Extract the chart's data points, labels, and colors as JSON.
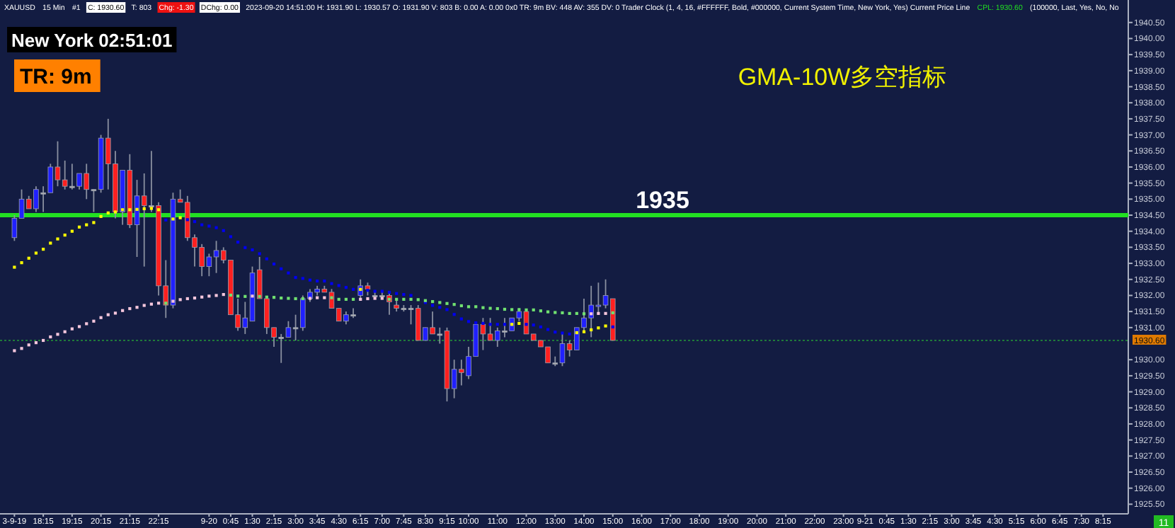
{
  "chart_data": {
    "type": "candlestick",
    "title": "GMA-10W多空指标",
    "categories": [
      "3-9-19",
      null,
      null,
      null,
      "18:15",
      null,
      null,
      null,
      "19:15",
      null,
      null,
      null,
      "20:15",
      null,
      null,
      null,
      "21:15",
      null,
      null,
      null,
      "22:15",
      null,
      null,
      null,
      null,
      null,
      null,
      "9-20",
      null,
      null,
      "0:45",
      null,
      null,
      "1:30",
      null,
      null,
      "2:15",
      null,
      null,
      "3:00",
      null,
      null,
      "3:45",
      null,
      null,
      "4:30",
      null,
      null,
      "6:15",
      null,
      null,
      "7:00",
      null,
      null,
      "7:45",
      null,
      null,
      "8:30",
      null,
      null,
      "9:15",
      null,
      null,
      "10:00",
      null,
      null,
      null,
      "11:00",
      null,
      null,
      null,
      "12:00",
      null,
      null,
      null,
      "13:00",
      null,
      null,
      null,
      "14:00",
      null,
      null,
      null,
      "15:00",
      null,
      null,
      null,
      "16:00",
      null,
      null,
      null,
      "17:00",
      null,
      null,
      null,
      "18:00",
      null,
      null,
      null,
      "19:00",
      null,
      null,
      null,
      "20:00",
      null,
      null,
      null,
      "21:00",
      null,
      null,
      null,
      "22:00",
      null,
      null,
      null,
      "23:00",
      null,
      null,
      "9-21",
      null,
      null,
      "0:45",
      null,
      null,
      "1:30",
      null,
      null,
      "2:15",
      null,
      null,
      "3:00",
      null,
      null,
      "3:45",
      null,
      null,
      "4:30",
      null,
      null,
      "5:15",
      null,
      null,
      "6:00",
      null,
      null,
      "6:45",
      null,
      null,
      "7:30",
      null,
      null,
      "8:15",
      null,
      null,
      null
    ],
    "ohlc": [
      [
        1933.8,
        1934.5,
        1933.7,
        1934.4
      ],
      [
        1934.4,
        1935.3,
        1934.4,
        1935.0
      ],
      [
        1935.0,
        1935.1,
        1934.7,
        1934.7
      ],
      [
        1934.7,
        1935.4,
        1934.6,
        1935.3
      ],
      [
        1935.2,
        1935.4,
        1934.6,
        1935.2
      ],
      [
        1935.2,
        1936.1,
        1935.2,
        1936.0
      ],
      [
        1936.0,
        1936.8,
        1935.4,
        1935.6
      ],
      [
        1935.6,
        1936.2,
        1935.3,
        1935.4
      ],
      [
        1935.4,
        1936.1,
        1935.3,
        1935.4
      ],
      [
        1935.4,
        1935.8,
        1935.3,
        1935.8
      ],
      [
        1935.8,
        1936.1,
        1935.0,
        1935.3
      ],
      [
        1935.3,
        1935.3,
        1934.6,
        1935.3
      ],
      [
        1935.3,
        1937.0,
        1935.2,
        1936.9
      ],
      [
        1936.9,
        1937.5,
        1935.3,
        1936.1
      ],
      [
        1936.1,
        1936.5,
        1934.4,
        1934.6
      ],
      [
        1934.6,
        1935.9,
        1934.2,
        1935.9
      ],
      [
        1935.9,
        1936.4,
        1934.1,
        1934.2
      ],
      [
        1934.2,
        1935.6,
        1933.2,
        1935.1
      ],
      [
        1935.1,
        1935.8,
        1932.9,
        1934.8
      ],
      [
        1934.8,
        1936.5,
        1934.6,
        1934.8
      ],
      [
        1934.8,
        1934.9,
        1932.0,
        1932.3
      ],
      [
        1932.3,
        1933.1,
        1931.3,
        1931.7
      ],
      [
        1931.7,
        1935.2,
        1931.6,
        1935.0
      ],
      [
        1935.0,
        1935.3,
        1934.9,
        1934.9
      ],
      [
        1934.9,
        1935.1,
        1933.7,
        1933.8
      ],
      [
        1933.8,
        1933.9,
        1932.9,
        1933.5
      ],
      [
        1933.5,
        1933.6,
        1932.6,
        1932.9
      ],
      [
        1932.9,
        1933.3,
        1932.6,
        1933.2
      ],
      [
        1933.2,
        1933.7,
        1932.7,
        1933.4
      ],
      [
        1933.4,
        1933.5,
        1933.0,
        1933.1
      ],
      [
        1933.1,
        1933.1,
        1931.4,
        1931.4
      ],
      [
        1931.4,
        1931.9,
        1930.9,
        1931.0
      ],
      [
        1931.0,
        1931.8,
        1930.8,
        1931.3
      ],
      [
        1931.2,
        1932.9,
        1931.2,
        1932.7
      ],
      [
        1932.8,
        1933.2,
        1931.9,
        1931.9
      ],
      [
        1931.9,
        1931.9,
        1930.8,
        1931.0
      ],
      [
        1931.0,
        1931.0,
        1930.4,
        1930.7
      ],
      [
        1930.7,
        1930.8,
        1929.9,
        1930.7
      ],
      [
        1930.7,
        1931.2,
        1930.7,
        1931.0
      ],
      [
        1931.0,
        1931.4,
        1930.6,
        1931.0
      ],
      [
        1931.0,
        1932.0,
        1930.9,
        1931.9
      ],
      [
        1931.9,
        1932.2,
        1931.8,
        1932.1
      ],
      [
        1932.1,
        1932.3,
        1932.0,
        1932.2
      ],
      [
        1932.2,
        1932.3,
        1932.1,
        1932.1
      ],
      [
        1932.1,
        1932.2,
        1931.6,
        1931.6
      ],
      [
        1931.6,
        1931.6,
        1931.2,
        1931.2
      ],
      [
        1931.2,
        1931.5,
        1931.1,
        1931.4
      ],
      [
        1931.4,
        1931.6,
        1931.3,
        1931.4
      ],
      [
        1932.0,
        1932.5,
        1931.9,
        1932.3
      ],
      [
        1932.3,
        1932.4,
        1932.0,
        1932.2
      ],
      [
        1932.0,
        1932.1,
        1931.9,
        1932.0
      ],
      [
        1932.0,
        1932.1,
        1931.9,
        1932.0
      ],
      [
        1932.0,
        1932.1,
        1931.4,
        1931.8
      ],
      [
        1931.7,
        1931.9,
        1931.5,
        1931.6
      ],
      [
        1931.6,
        1931.7,
        1931.5,
        1931.6
      ],
      [
        1931.6,
        1931.7,
        1931.1,
        1931.6
      ],
      [
        1931.6,
        1931.7,
        1930.6,
        1930.6
      ],
      [
        1930.6,
        1931.0,
        1930.6,
        1931.0
      ],
      [
        1931.0,
        1931.5,
        1930.8,
        1930.8
      ],
      [
        1930.8,
        1931.0,
        1930.5,
        1930.8
      ],
      [
        1930.9,
        1931.0,
        1928.7,
        1929.1
      ],
      [
        1929.1,
        1930.0,
        1928.8,
        1929.7
      ],
      [
        1929.7,
        1930.0,
        1929.2,
        1929.6
      ],
      [
        1929.5,
        1930.4,
        1929.4,
        1930.1
      ],
      [
        1930.1,
        1931.1,
        1930.1,
        1931.1
      ],
      [
        1931.1,
        1931.3,
        1930.3,
        1930.8
      ],
      [
        1930.8,
        1931.3,
        1930.6,
        1930.6
      ],
      [
        1930.6,
        1931.0,
        1930.4,
        1930.9
      ],
      [
        1930.9,
        1931.3,
        1930.7,
        1930.9
      ],
      [
        1930.9,
        1931.3,
        1930.9,
        1931.3
      ],
      [
        1931.3,
        1931.6,
        1931.2,
        1931.5
      ],
      [
        1931.5,
        1931.5,
        1930.8,
        1930.8
      ],
      [
        1930.8,
        1930.8,
        1930.6,
        1930.6
      ],
      [
        1930.6,
        1930.6,
        1930.4,
        1930.4
      ],
      [
        1930.4,
        1930.4,
        1929.9,
        1929.9
      ],
      [
        1929.9,
        1930.1,
        1929.8,
        1929.9
      ],
      [
        1929.9,
        1930.8,
        1929.8,
        1930.5
      ],
      [
        1930.5,
        1930.6,
        1930.1,
        1930.3
      ],
      [
        1930.3,
        1931.0,
        1930.3,
        1931.0
      ],
      [
        1931.0,
        1931.9,
        1930.9,
        1931.3
      ],
      [
        1931.3,
        1932.3,
        1930.7,
        1931.7
      ],
      [
        1931.7,
        1932.4,
        1931.4,
        1931.7
      ],
      [
        1931.7,
        1932.5,
        1931.6,
        1932.0
      ],
      [
        1931.9,
        1931.9,
        1930.6,
        1930.6
      ],
      null,
      null,
      null,
      null,
      null,
      null,
      null,
      null,
      null,
      null,
      null,
      null,
      null,
      null,
      null,
      null,
      null,
      null,
      null,
      null,
      null,
      null,
      null,
      null,
      null,
      null,
      null,
      null,
      null,
      null,
      null,
      null,
      null,
      null,
      null,
      null,
      null,
      null,
      null,
      null,
      null,
      null,
      null,
      null,
      null,
      null,
      null,
      null,
      null,
      null,
      null,
      null,
      null,
      null,
      null,
      null,
      null,
      null,
      null,
      null,
      null,
      null,
      null,
      null,
      null,
      null,
      null,
      null,
      null,
      null,
      null
    ],
    "colors": [
      "#2020ff",
      "#2020ff",
      "#ff2020",
      "#2020ff",
      "#b0b0b0",
      "#2020ff",
      "#ff2020",
      "#ff2020",
      "#b0b0b0",
      "#2020ff",
      "#ff2020",
      "#b0b0b0",
      "#2020ff",
      "#ff2020",
      "#ff2020",
      "#2020ff",
      "#ff2020",
      "#2020ff",
      "#ff2020",
      "#b0b0b0",
      "#ff2020",
      "#ff2020",
      "#2020ff",
      "#ff2020",
      "#ff2020",
      "#ff2020",
      "#ff2020",
      "#2020ff",
      "#2020ff",
      "#ff2020",
      "#ff2020",
      "#ff2020",
      "#2020ff",
      "#2020ff",
      "#ff2020",
      "#ff2020",
      "#ff2020",
      "#b0b0b0",
      "#2020ff",
      "#b0b0b0",
      "#2020ff",
      "#2020ff",
      "#2020ff",
      "#ff2020",
      "#ff2020",
      "#ff2020",
      "#2020ff",
      "#b0b0b0",
      "#2020ff",
      "#ff2020",
      "#b0b0b0",
      "#b0b0b0",
      "#ff2020",
      "#ff2020",
      "#b0b0b0",
      "#b0b0b0",
      "#ff2020",
      "#2020ff",
      "#ff2020",
      "#b0b0b0",
      "#ff2020",
      "#2020ff",
      "#ff2020",
      "#2020ff",
      "#2020ff",
      "#ff2020",
      "#ff2020",
      "#2020ff",
      "#b0b0b0",
      "#2020ff",
      "#2020ff",
      "#ff2020",
      "#ff2020",
      "#ff2020",
      "#ff2020",
      "#b0b0b0",
      "#2020ff",
      "#ff2020",
      "#2020ff",
      "#2020ff",
      "#2020ff",
      "#2020ff",
      "#2020ff",
      "#ff2020",
      null,
      null,
      null,
      null,
      null,
      null,
      null,
      null,
      null,
      null,
      null,
      null,
      null,
      null,
      null,
      null,
      null,
      null,
      null,
      null,
      null,
      null,
      null,
      null,
      null,
      null,
      null,
      null,
      null,
      null,
      null,
      null,
      null,
      null,
      null,
      null,
      null,
      null,
      null,
      null,
      null,
      null,
      null,
      null,
      null,
      null,
      null,
      null,
      null,
      null,
      null,
      null,
      null,
      null,
      null,
      null,
      null,
      null,
      null,
      null,
      null,
      null,
      null,
      null,
      null,
      null,
      null,
      null,
      null,
      null,
      null
    ],
    "ylim": [
      1925.2,
      1941.2
    ],
    "yticks": [
      {
        "value": 1925.5,
        "label": "1925.50"
      },
      {
        "value": 1926,
        "label": "1926.00"
      },
      {
        "value": 1926.5,
        "label": "1926.50"
      },
      {
        "value": 1927,
        "label": "1927.00"
      },
      {
        "value": 1927.5,
        "label": "1927.50"
      },
      {
        "value": 1928,
        "label": "1928.00"
      },
      {
        "value": 1928.5,
        "label": "1928.50"
      },
      {
        "value": 1929,
        "label": "1929.00"
      },
      {
        "value": 1929.5,
        "label": "1929.50"
      },
      {
        "value": 1930,
        "label": "1930.00"
      },
      {
        "value": 1931,
        "label": "1931.00"
      },
      {
        "value": 1931.5,
        "label": "1931.50"
      },
      {
        "value": 1932,
        "label": "1932.00"
      },
      {
        "value": 1932.5,
        "label": "1932.50"
      },
      {
        "value": 1933,
        "label": "1933.00"
      },
      {
        "value": 1933.5,
        "label": "1933.50"
      },
      {
        "value": 1934,
        "label": "1934.00"
      },
      {
        "value": 1934.5,
        "label": "1934.50"
      },
      {
        "value": 1935,
        "label": "1935.00"
      },
      {
        "value": 1935.5,
        "label": "1935.50"
      },
      {
        "value": 1936,
        "label": "1936.00"
      },
      {
        "value": 1936.5,
        "label": "1936.50"
      },
      {
        "value": 1937,
        "label": "1937.00"
      },
      {
        "value": 1937.5,
        "label": "1937.50"
      },
      {
        "value": 1938,
        "label": "1938.00"
      },
      {
        "value": 1938.5,
        "label": "1938.50"
      },
      {
        "value": 1939,
        "label": "1939.00"
      },
      {
        "value": 1939.5,
        "label": "1939.50"
      },
      {
        "value": 1940,
        "label": "1940.00"
      },
      {
        "value": 1940.5,
        "label": "1940.50"
      }
    ],
    "series": [
      {
        "type": "scatter",
        "marker": "square",
        "values": [
          1932.88,
          1933.02,
          1933.16,
          1933.32,
          1933.44,
          1933.63,
          1933.76,
          1933.88,
          1934.0,
          1934.13,
          1934.2,
          1934.27,
          1934.46,
          1934.57,
          1934.6,
          1934.67,
          1934.67,
          1934.68,
          1934.7,
          1934.71,
          1934.67,
          1934.35,
          1934.38,
          1934.42,
          1934.36,
          1934.3,
          1934.2,
          1934.16,
          1934.11,
          1934.02,
          1933.83,
          1933.66,
          1933.49,
          1933.42,
          1933.3,
          1933.14,
          1932.98,
          1932.83,
          1932.7,
          1932.56,
          1932.53,
          1932.48,
          1932.45,
          1932.45,
          1932.37,
          1932.31,
          1932.25,
          1932.19,
          1932.19,
          1932.16,
          1932.13,
          1932.13,
          1932.1,
          1932.06,
          1932.03,
          1932.0,
          null,
          1931.78,
          1931.69,
          1931.63,
          1931.56,
          1931.41,
          1931.27,
          1931.19,
          1931.15,
          1931.13,
          1931.1,
          1931.1,
          1931.1,
          1931.1,
          1931.13,
          1931.1,
          1931.08,
          1931.02,
          1930.94,
          1930.86,
          1930.83,
          1930.8,
          1930.84,
          1930.87,
          1930.93,
          1930.99,
          1931.05,
          1931.02,
          null,
          null,
          null,
          null,
          null,
          null,
          null,
          null,
          null,
          null,
          null,
          null,
          null,
          null,
          null,
          null,
          null,
          null,
          null,
          null,
          null,
          null,
          null,
          null,
          null,
          null,
          null,
          null,
          null,
          null,
          null,
          null,
          null,
          null,
          null,
          null,
          null,
          null,
          null,
          null,
          null,
          null,
          null,
          null,
          null,
          null,
          null,
          null,
          null,
          null,
          null,
          null,
          null,
          null,
          null,
          null,
          null,
          null,
          null,
          null,
          null,
          null,
          null,
          null,
          null,
          null,
          null,
          null,
          null,
          null,
          null
        ],
        "colors": [
          "#ffff00",
          "#ffff00",
          "#ffff00",
          "#ffff00",
          "#ffff00",
          "#ffff00",
          "#ffff00",
          "#ffff00",
          "#ffff00",
          "#ffff00",
          "#ffff00",
          "#ffff00",
          "#ffff00",
          "#ffff00",
          "#ffff00",
          "#ffff00",
          "#ffff00",
          "#ffff00",
          "#ffff00",
          "#ffff00",
          "#ffff00",
          "#0000ee",
          "#ffff00",
          "#ffff00",
          "#0000ee",
          "#0000ee",
          "#0000ee",
          "#0000ee",
          "#0000ee",
          "#0000ee",
          "#0000ee",
          "#0000ee",
          "#0000ee",
          "#0000ee",
          "#0000ee",
          "#0000ee",
          "#0000ee",
          "#0000ee",
          "#0000ee",
          "#0000ee",
          "#0000ee",
          "#0000ee",
          "#0000ee",
          "#0000ee",
          "#0000ee",
          "#0000ee",
          "#0000ee",
          "#0000ee",
          "#ffff00",
          "#0000ee",
          "#0000ee",
          "#0000ee",
          "#0000ee",
          "#0000ee",
          "#0000ee",
          "#0000ee",
          "#0000ee",
          "#0000ee",
          "#0000ee",
          "#0000ee",
          "#0000ee",
          "#0000ee",
          "#0000ee",
          "#0000ee",
          "#0000ee",
          "#0000ee",
          "#0000ee",
          "#0000ee",
          "#0000ee",
          "#ffff00",
          "#ffff00",
          "#0000ee",
          "#0000ee",
          "#0000ee",
          "#0000ee",
          "#0000ee",
          "#0000ee",
          "#0000ee",
          "#ffff00",
          "#ffff00",
          "#ffff00",
          "#ffff00",
          "#ffff00",
          "#0000ee",
          null,
          null,
          null,
          null,
          null,
          null,
          null,
          null,
          null,
          null,
          null,
          null,
          null,
          null,
          null,
          null,
          null,
          null,
          null,
          null,
          null,
          null,
          null,
          null,
          null,
          null,
          null,
          null,
          null,
          null,
          null,
          null,
          null,
          null,
          null,
          null,
          null,
          null,
          null,
          null,
          null,
          null,
          null,
          null,
          null,
          null,
          null,
          null,
          null,
          null,
          null,
          null,
          null,
          null,
          null,
          null,
          null,
          null,
          null,
          null,
          null,
          null,
          null,
          null,
          null,
          null,
          null,
          null,
          null,
          null,
          null
        ]
      },
      {
        "type": "scatter",
        "marker": "square",
        "values": [
          1930.28,
          1930.35,
          1930.46,
          1930.53,
          1930.6,
          1930.71,
          1930.79,
          1930.87,
          1930.96,
          1931.03,
          1931.12,
          1931.2,
          1931.31,
          1931.4,
          1931.45,
          1931.53,
          1931.59,
          1931.63,
          1931.69,
          1931.73,
          1931.76,
          1931.76,
          1931.82,
          1931.87,
          1931.9,
          1931.92,
          1931.95,
          1931.98,
          1932.0,
          1932.03,
          1932.01,
          1931.98,
          1931.97,
          1931.98,
          1931.97,
          1931.95,
          1931.94,
          1931.92,
          1931.91,
          1931.9,
          1931.9,
          1931.91,
          1931.93,
          1931.93,
          1931.93,
          1931.88,
          1931.88,
          1931.88,
          1931.88,
          1931.9,
          1931.91,
          1931.91,
          1931.88,
          1931.88,
          1931.88,
          1931.88,
          1931.87,
          1931.84,
          1931.81,
          1931.78,
          1931.75,
          1931.72,
          1931.68,
          1931.65,
          1931.65,
          1931.62,
          1931.6,
          1931.59,
          1931.57,
          1931.56,
          1931.56,
          1931.55,
          1931.55,
          1931.52,
          1931.49,
          1931.47,
          1931.46,
          1931.44,
          1931.44,
          1931.43,
          1931.43,
          1931.44,
          1931.44,
          1931.46,
          null,
          null,
          null,
          null,
          null,
          null,
          null,
          null,
          null,
          null,
          null,
          null,
          null,
          null,
          null,
          null,
          null,
          null,
          null,
          null,
          null,
          null,
          null,
          null,
          null,
          null,
          null,
          null,
          null,
          null,
          null,
          null,
          null,
          null,
          null,
          null,
          null,
          null,
          null,
          null,
          null,
          null,
          null,
          null,
          null,
          null,
          null,
          null,
          null,
          null,
          null,
          null,
          null,
          null,
          null,
          null,
          null,
          null,
          null,
          null,
          null,
          null,
          null,
          null,
          null,
          null,
          null,
          null,
          null,
          null,
          null
        ],
        "colors": [
          "#f5c6dc",
          "#f5c6dc",
          "#f5c6dc",
          "#f5c6dc",
          "#f5c6dc",
          "#f5c6dc",
          "#f5c6dc",
          "#f5c6dc",
          "#f5c6dc",
          "#f5c6dc",
          "#f5c6dc",
          "#f5c6dc",
          "#f5c6dc",
          "#f5c6dc",
          "#f5c6dc",
          "#f5c6dc",
          "#f5c6dc",
          "#f5c6dc",
          "#f5c6dc",
          "#f5c6dc",
          "#f5c6dc",
          "#70e070",
          "#f5c6dc",
          "#f5c6dc",
          "#f5c6dc",
          "#f5c6dc",
          "#f5c6dc",
          "#f5c6dc",
          "#f5c6dc",
          "#f5c6dc",
          "#70e070",
          "#70e070",
          "#70e070",
          "#f5c6dc",
          "#70e070",
          "#70e070",
          "#70e070",
          "#70e070",
          "#70e070",
          "#70e070",
          "#70e070",
          "#f5c6dc",
          "#f5c6dc",
          "#f5c6dc",
          "#70e070",
          "#70e070",
          "#70e070",
          "#70e070",
          "#f5c6dc",
          "#f5c6dc",
          "#f5c6dc",
          "#f5c6dc",
          "#70e070",
          "#70e070",
          "#70e070",
          "#70e070",
          "#70e070",
          "#70e070",
          "#70e070",
          "#70e070",
          "#70e070",
          "#70e070",
          "#70e070",
          "#70e070",
          "#70e070",
          "#70e070",
          "#70e070",
          "#70e070",
          "#70e070",
          "#70e070",
          "#70e070",
          "#70e070",
          "#70e070",
          "#70e070",
          "#70e070",
          "#70e070",
          "#70e070",
          "#70e070",
          "#70e070",
          "#70e070",
          "#f5c6dc",
          "#f5c6dc",
          "#f5c6dc",
          "#70e070",
          null,
          null,
          null,
          null,
          null,
          null,
          null,
          null,
          null,
          null,
          null,
          null,
          null,
          null,
          null,
          null,
          null,
          null,
          null,
          null,
          null,
          null,
          null,
          null,
          null,
          null,
          null,
          null,
          null,
          null,
          null,
          null,
          null,
          null,
          null,
          null,
          null,
          null,
          null,
          null,
          null,
          null,
          null,
          null,
          null,
          null,
          null,
          null,
          null,
          null,
          null,
          null,
          null,
          null,
          null,
          null,
          null,
          null,
          null,
          null,
          null,
          null,
          null,
          null,
          null,
          null,
          null,
          null,
          null,
          null,
          null
        ]
      }
    ],
    "ref_lines": [
      {
        "axis": "y",
        "value": 1934.5,
        "label": "1935",
        "color": "#22e022",
        "line_style": "solid"
      },
      {
        "axis": "y",
        "value": 1930.6,
        "label": "1930.60",
        "color": "#1f7a3a",
        "line_style": "dotted"
      }
    ],
    "annotations": [
      "XAUUSD",
      "15 Min",
      "#1",
      "C: 1930.60",
      "T: 803",
      "Chg: -1.30",
      "DChg: 0.00",
      "2023-09-20 14:51:00 H: 1931.90 L: 1930.57 O: 1931.90 V: 803 B: 0.00 A: 0.00 0x0 TR: 9m BV: 448 AV: 355 DV: 0 Trader Clock (1, 4, 16, #FFFFFF, Bold, #000000, Current System Time, New York, Yes) Current Price Line",
      "CPL: 1930.60",
      "(100000, Last, Yes, No, No",
      "New York 02:51:01",
      "TR: 9m",
      "11"
    ]
  }
}
